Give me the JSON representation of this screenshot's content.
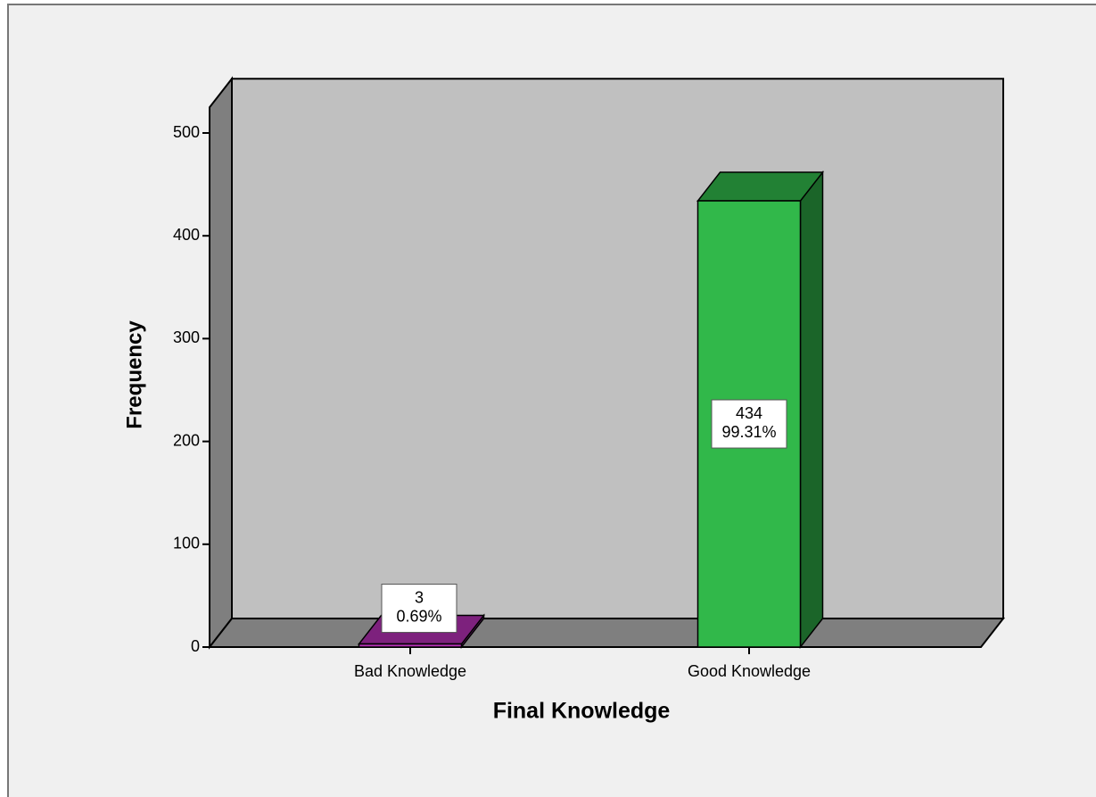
{
  "chart_data": {
    "type": "bar3d",
    "x_label": "Final Knowledge",
    "y_label": "Frequency",
    "categories": [
      "Bad Knowledge",
      "Good Knowledge"
    ],
    "values": [
      3,
      434
    ],
    "percent_labels": [
      "0.69%",
      "99.31%"
    ],
    "colors": [
      "#b22fb2",
      "#31b84a"
    ],
    "ylim": [
      0,
      525
    ],
    "yticks": [
      0,
      100,
      200,
      300,
      400,
      500
    ]
  }
}
